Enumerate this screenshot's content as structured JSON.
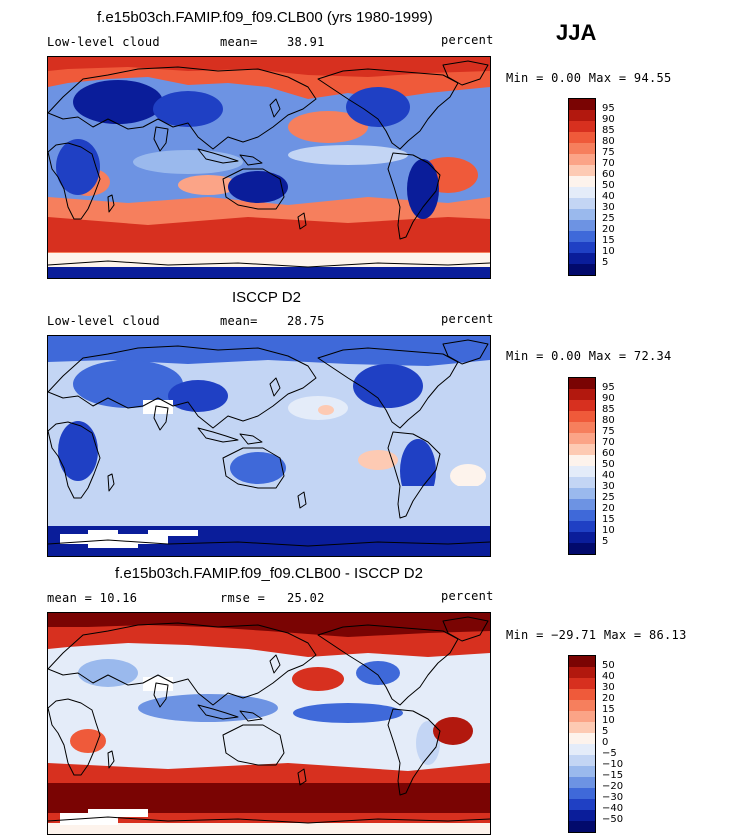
{
  "season": "JJA",
  "panels": [
    {
      "title": "f.e15b03ch.FAMIP.f09_f09.CLB00 (yrs 1980-1999)",
      "left_label": "Low-level cloud",
      "stat_label": "mean=",
      "stat_value": "38.91",
      "units": "percent",
      "minmax": "Min =    0.00 Max =   94.55",
      "map_kind": "model"
    },
    {
      "title": "ISCCP D2",
      "left_label": "Low-level cloud",
      "stat_label": "mean=",
      "stat_value": "28.75",
      "units": "percent",
      "minmax": "Min =    0.00 Max =   72.34",
      "map_kind": "obs"
    },
    {
      "title": "f.e15b03ch.FAMIP.f09_f09.CLB00 - ISCCP D2",
      "left_label": "mean =   10.16",
      "stat_label": "rmse =",
      "stat_value": "25.02",
      "units": "percent",
      "minmax": "Min = −29.71 Max =   86.13",
      "map_kind": "diff"
    }
  ],
  "colorbars": {
    "field": {
      "labels": [
        "95",
        "90",
        "85",
        "80",
        "75",
        "70",
        "60",
        "50",
        "40",
        "30",
        "25",
        "20",
        "15",
        "10",
        "5"
      ],
      "colors": [
        "#7a0403",
        "#b2180e",
        "#d7301f",
        "#ef5a3a",
        "#f67f5d",
        "#fba487",
        "#fdcab3",
        "#fdf3ec",
        "#e4ecf9",
        "#c3d5f4",
        "#9ab9ed",
        "#6d93e3",
        "#3f69d9",
        "#1f40c4",
        "#0a1d9a",
        "#020a6c"
      ]
    },
    "diff": {
      "labels": [
        "50",
        "40",
        "30",
        "20",
        "15",
        "10",
        "5",
        "0",
        "−5",
        "−10",
        "−15",
        "−20",
        "−30",
        "−40",
        "−50"
      ],
      "colors": [
        "#7a0403",
        "#b2180e",
        "#d7301f",
        "#ef5a3a",
        "#f67f5d",
        "#fba487",
        "#fdcab3",
        "#fdf3ec",
        "#e4ecf9",
        "#c3d5f4",
        "#9ab9ed",
        "#6d93e3",
        "#3f69d9",
        "#1f40c4",
        "#0a1d9a",
        "#020a6c"
      ]
    }
  }
}
